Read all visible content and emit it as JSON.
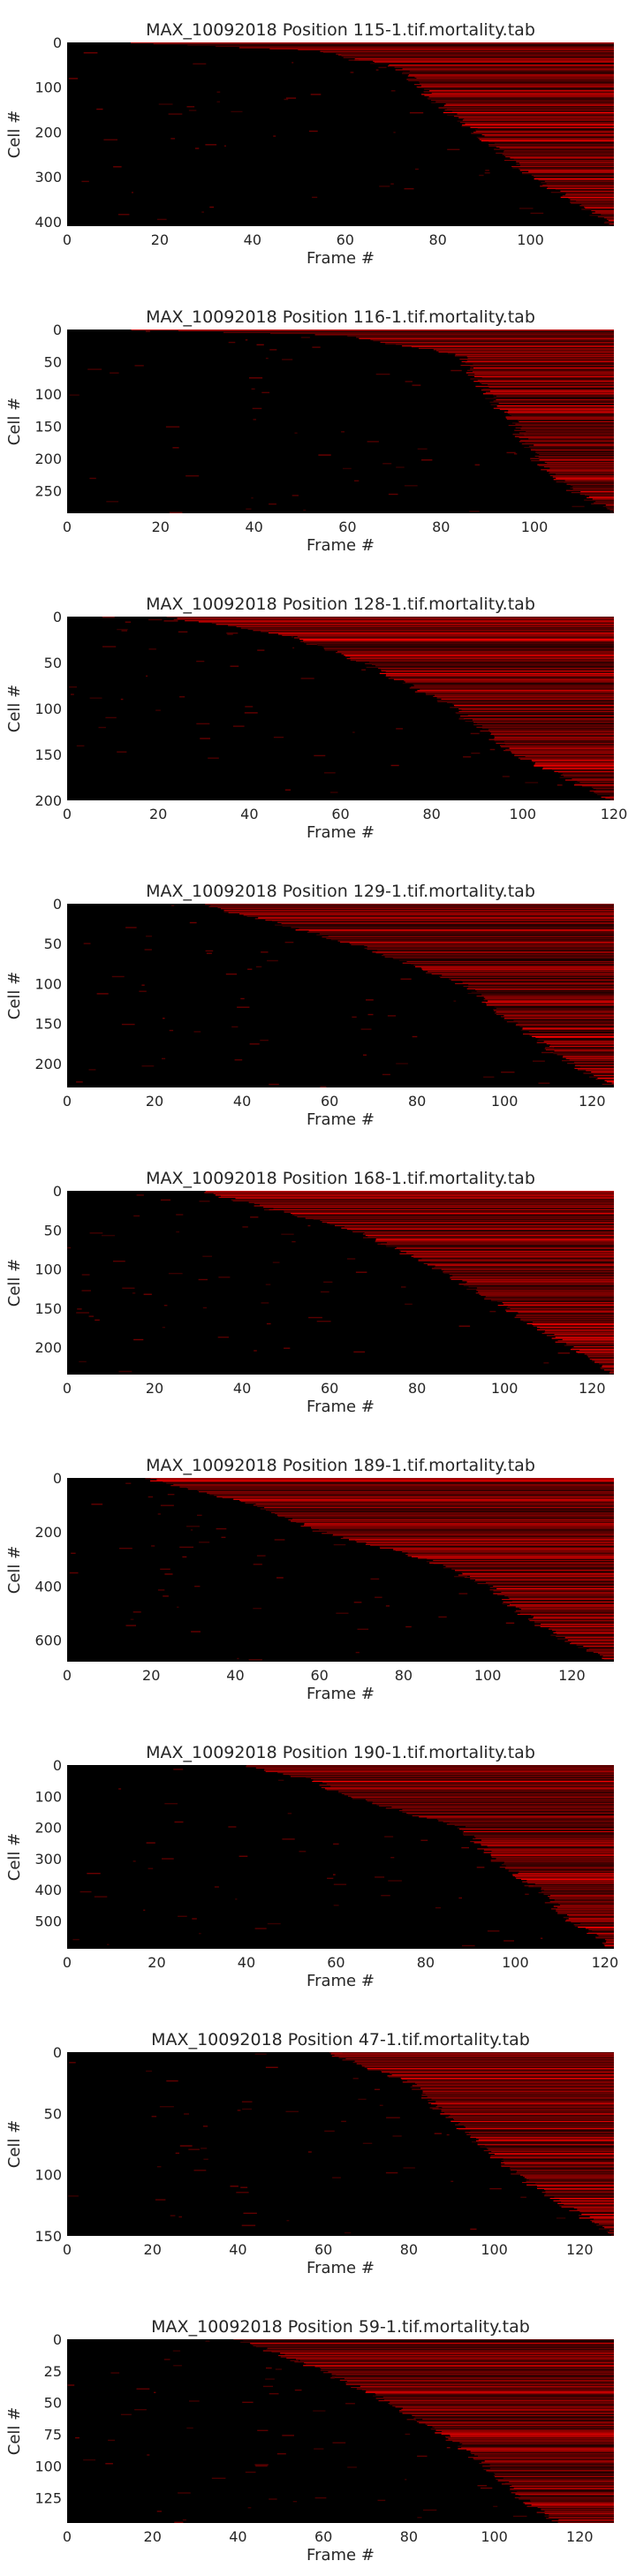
{
  "style": {
    "background": "#000000",
    "mark_color": "#ff0000",
    "dim_mark_color": "#7a0000",
    "tick_color": "#262626"
  },
  "chart_data": [
    {
      "type": "heatmap",
      "title": "MAX_10092018 Position 115-1.tif.mortality.tab",
      "xlabel": "Frame #",
      "ylabel": "Cell #",
      "xlim": [
        0,
        118
      ],
      "ylim": [
        410,
        0
      ],
      "xticks": [
        0,
        20,
        40,
        60,
        80,
        100
      ],
      "yticks": [
        0,
        100,
        200,
        300,
        400
      ],
      "rows": 410,
      "death_front": [
        [
          0,
          10
        ],
        [
          20,
          55
        ],
        [
          60,
          72
        ],
        [
          120,
          78
        ],
        [
          200,
          88
        ],
        [
          300,
          100
        ],
        [
          410,
          118
        ]
      ]
    },
    {
      "type": "heatmap",
      "title": "MAX_10092018 Position 116-1.tif.mortality.tab",
      "xlabel": "Frame #",
      "ylabel": "Cell #",
      "xlim": [
        0,
        117
      ],
      "ylim": [
        285,
        0
      ],
      "xticks": [
        0,
        20,
        40,
        60,
        80,
        100
      ],
      "yticks": [
        0,
        50,
        100,
        150,
        200,
        250
      ],
      "rows": 285,
      "death_front": [
        [
          0,
          8
        ],
        [
          10,
          60
        ],
        [
          40,
          84
        ],
        [
          100,
          90
        ],
        [
          150,
          96
        ],
        [
          200,
          100
        ],
        [
          250,
          108
        ],
        [
          285,
          117
        ]
      ]
    },
    {
      "type": "heatmap",
      "title": "MAX_10092018 Position 128-1.tif.mortality.tab",
      "xlabel": "Frame #",
      "ylabel": "Cell #",
      "xlim": [
        0,
        120
      ],
      "ylim": [
        200,
        0
      ],
      "xticks": [
        0,
        20,
        40,
        60,
        80,
        100,
        120
      ],
      "yticks": [
        0,
        50,
        100,
        150,
        200
      ],
      "rows": 200,
      "death_front": [
        [
          0,
          20
        ],
        [
          20,
          48
        ],
        [
          50,
          65
        ],
        [
          100,
          85
        ],
        [
          150,
          98
        ],
        [
          200,
          120
        ]
      ]
    },
    {
      "type": "heatmap",
      "title": "MAX_10092018 Position 129-1.tif.mortality.tab",
      "xlabel": "Frame #",
      "ylabel": "Cell #",
      "xlim": [
        0,
        125
      ],
      "ylim": [
        230,
        0
      ],
      "xticks": [
        0,
        20,
        40,
        60,
        80,
        100,
        120
      ],
      "yticks": [
        0,
        50,
        100,
        150,
        200
      ],
      "rows": 230,
      "death_front": [
        [
          0,
          30
        ],
        [
          50,
          65
        ],
        [
          100,
          90
        ],
        [
          150,
          102
        ],
        [
          200,
          115
        ],
        [
          230,
          125
        ]
      ]
    },
    {
      "type": "heatmap",
      "title": "MAX_10092018 Position 168-1.tif.mortality.tab",
      "xlabel": "Frame #",
      "ylabel": "Cell #",
      "xlim": [
        0,
        125
      ],
      "ylim": [
        235,
        0
      ],
      "xticks": [
        0,
        20,
        40,
        60,
        80,
        100,
        120
      ],
      "yticks": [
        0,
        50,
        100,
        150,
        200
      ],
      "rows": 235,
      "death_front": [
        [
          0,
          30
        ],
        [
          50,
          65
        ],
        [
          100,
          85
        ],
        [
          150,
          100
        ],
        [
          200,
          115
        ],
        [
          235,
          125
        ]
      ]
    },
    {
      "type": "heatmap",
      "title": "MAX_10092018 Position 189-1.tif.mortality.tab",
      "xlabel": "Frame #",
      "ylabel": "Cell #",
      "xlim": [
        0,
        130
      ],
      "ylim": [
        680,
        0
      ],
      "xticks": [
        0,
        20,
        40,
        60,
        80,
        100,
        120
      ],
      "yticks": [
        0,
        200,
        400,
        600
      ],
      "rows": 680,
      "death_front": [
        [
          0,
          18
        ],
        [
          100,
          45
        ],
        [
          200,
          60
        ],
        [
          300,
          85
        ],
        [
          400,
          100
        ],
        [
          500,
          108
        ],
        [
          600,
          118
        ],
        [
          680,
          130
        ]
      ]
    },
    {
      "type": "heatmap",
      "title": "MAX_10092018 Position 190-1.tif.mortality.tab",
      "xlabel": "Frame #",
      "ylabel": "Cell #",
      "xlim": [
        0,
        122
      ],
      "ylim": [
        590,
        0
      ],
      "xticks": [
        0,
        20,
        40,
        60,
        80,
        100,
        120
      ],
      "yticks": [
        0,
        100,
        200,
        300,
        400,
        500
      ],
      "rows": 590,
      "death_front": [
        [
          0,
          38
        ],
        [
          50,
          55
        ],
        [
          100,
          62
        ],
        [
          200,
          88
        ],
        [
          300,
          95
        ],
        [
          400,
          105
        ],
        [
          500,
          112
        ],
        [
          590,
          122
        ]
      ]
    },
    {
      "type": "heatmap",
      "title": "MAX_10092018 Position 47-1.tif.mortality.tab",
      "xlabel": "Frame #",
      "ylabel": "Cell #",
      "xlim": [
        0,
        128
      ],
      "ylim": [
        150,
        0
      ],
      "xticks": [
        0,
        20,
        40,
        60,
        80,
        100,
        120
      ],
      "yticks": [
        0,
        50,
        100,
        150
      ],
      "rows": 150,
      "death_front": [
        [
          0,
          60
        ],
        [
          25,
          80
        ],
        [
          50,
          88
        ],
        [
          100,
          105
        ],
        [
          150,
          128
        ]
      ]
    },
    {
      "type": "heatmap",
      "title": "MAX_10092018 Position 59-1.tif.mortality.tab",
      "xlabel": "Frame #",
      "ylabel": "Cell #",
      "xlim": [
        0,
        128
      ],
      "ylim": [
        145,
        0
      ],
      "xticks": [
        0,
        20,
        40,
        60,
        80,
        100,
        120
      ],
      "yticks": [
        0,
        25,
        50,
        75,
        100,
        125
      ],
      "rows": 145,
      "death_front": [
        [
          0,
          40
        ],
        [
          25,
          60
        ],
        [
          50,
          75
        ],
        [
          75,
          88
        ],
        [
          100,
          98
        ],
        [
          125,
          106
        ],
        [
          145,
          115
        ]
      ]
    }
  ]
}
